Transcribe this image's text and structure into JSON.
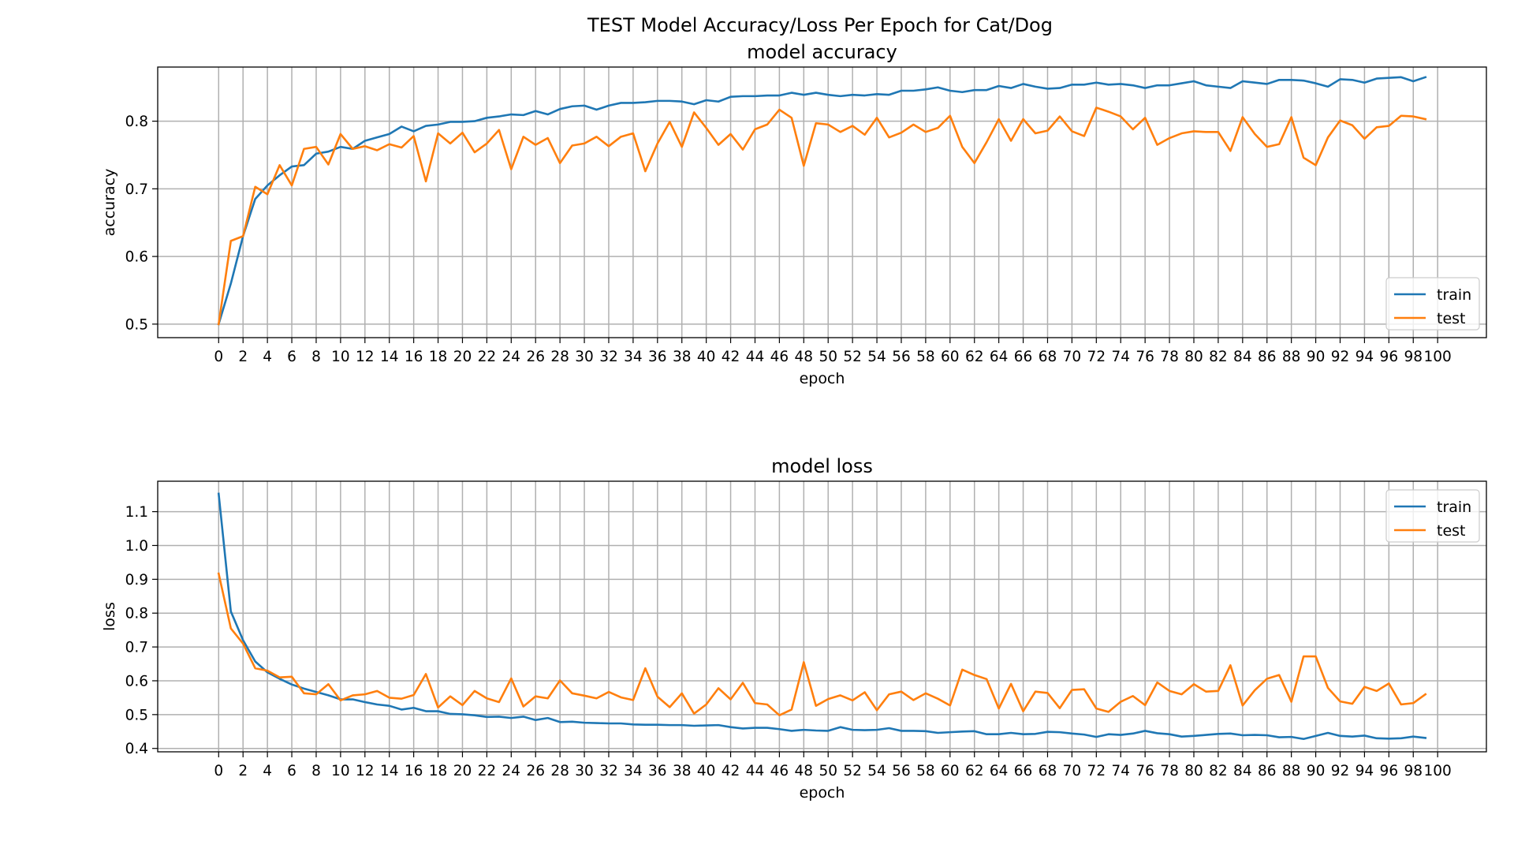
{
  "figure": {
    "suptitle": "TEST Model Accuracy/Loss Per Epoch for Cat/Dog"
  },
  "chart_data": [
    {
      "type": "line",
      "title": "model accuracy",
      "xlabel": "epoch",
      "ylabel": "accuracy",
      "xlim": [
        -5,
        104
      ],
      "ylim": [
        0.48,
        0.88
      ],
      "xticks": [
        0,
        2,
        4,
        6,
        8,
        10,
        12,
        14,
        16,
        18,
        20,
        22,
        24,
        26,
        28,
        30,
        32,
        34,
        36,
        38,
        40,
        42,
        44,
        46,
        48,
        50,
        52,
        54,
        56,
        58,
        60,
        62,
        64,
        66,
        68,
        70,
        72,
        74,
        76,
        78,
        80,
        82,
        84,
        86,
        88,
        90,
        92,
        94,
        96,
        98,
        100
      ],
      "yticks": [
        0.5,
        0.6,
        0.7,
        0.8
      ],
      "ytick_labels": [
        "0.5",
        "0.6",
        "0.7",
        "0.8"
      ],
      "grid": true,
      "legend": "center-right",
      "series": [
        {
          "name": "train",
          "color": "#1f77b4",
          "values": [
            0.5,
            0.56,
            0.63,
            0.685,
            0.705,
            0.72,
            0.733,
            0.735,
            0.752,
            0.755,
            0.762,
            0.759,
            0.771,
            0.776,
            0.781,
            0.792,
            0.785,
            0.793,
            0.795,
            0.799,
            0.799,
            0.8,
            0.805,
            0.807,
            0.81,
            0.809,
            0.815,
            0.81,
            0.818,
            0.822,
            0.823,
            0.817,
            0.823,
            0.827,
            0.827,
            0.828,
            0.83,
            0.83,
            0.829,
            0.825,
            0.831,
            0.829,
            0.836,
            0.837,
            0.837,
            0.838,
            0.838,
            0.842,
            0.839,
            0.842,
            0.839,
            0.837,
            0.839,
            0.838,
            0.84,
            0.839,
            0.845,
            0.845,
            0.847,
            0.85,
            0.845,
            0.843,
            0.846,
            0.846,
            0.852,
            0.849,
            0.855,
            0.851,
            0.848,
            0.849,
            0.854,
            0.854,
            0.857,
            0.854,
            0.855,
            0.853,
            0.849,
            0.853,
            0.853,
            0.856,
            0.859,
            0.853,
            0.851,
            0.849,
            0.859,
            0.857,
            0.855,
            0.861,
            0.861,
            0.86,
            0.856,
            0.851,
            0.862,
            0.861,
            0.857,
            0.863,
            0.864,
            0.865,
            0.859,
            0.865
          ]
        },
        {
          "name": "test",
          "color": "#ff7f0e",
          "values": [
            0.5,
            0.623,
            0.63,
            0.703,
            0.692,
            0.735,
            0.705,
            0.759,
            0.762,
            0.736,
            0.781,
            0.759,
            0.763,
            0.757,
            0.766,
            0.761,
            0.778,
            0.711,
            0.782,
            0.767,
            0.783,
            0.754,
            0.767,
            0.787,
            0.729,
            0.777,
            0.765,
            0.775,
            0.738,
            0.764,
            0.767,
            0.777,
            0.763,
            0.777,
            0.782,
            0.726,
            0.767,
            0.799,
            0.762,
            0.813,
            0.79,
            0.765,
            0.781,
            0.758,
            0.788,
            0.795,
            0.817,
            0.805,
            0.734,
            0.797,
            0.795,
            0.784,
            0.793,
            0.78,
            0.805,
            0.776,
            0.783,
            0.795,
            0.784,
            0.79,
            0.808,
            0.762,
            0.738,
            0.769,
            0.803,
            0.771,
            0.803,
            0.782,
            0.786,
            0.807,
            0.785,
            0.778,
            0.82,
            0.814,
            0.807,
            0.788,
            0.805,
            0.765,
            0.775,
            0.782,
            0.785,
            0.784,
            0.784,
            0.756,
            0.806,
            0.781,
            0.762,
            0.766,
            0.806,
            0.746,
            0.735,
            0.776,
            0.801,
            0.794,
            0.774,
            0.791,
            0.793,
            0.808,
            0.807,
            0.803
          ]
        }
      ]
    },
    {
      "type": "line",
      "title": "model loss",
      "xlabel": "epoch",
      "ylabel": "loss",
      "xlim": [
        -5,
        104
      ],
      "ylim": [
        0.39,
        1.19
      ],
      "xticks": [
        0,
        2,
        4,
        6,
        8,
        10,
        12,
        14,
        16,
        18,
        20,
        22,
        24,
        26,
        28,
        30,
        32,
        34,
        36,
        38,
        40,
        42,
        44,
        46,
        48,
        50,
        52,
        54,
        56,
        58,
        60,
        62,
        64,
        66,
        68,
        70,
        72,
        74,
        76,
        78,
        80,
        82,
        84,
        86,
        88,
        90,
        92,
        94,
        96,
        98,
        100
      ],
      "yticks": [
        0.4,
        0.5,
        0.6,
        0.7,
        0.8,
        0.9,
        1.0,
        1.1
      ],
      "ytick_labels": [
        "0.4",
        "0.5",
        "0.6",
        "0.7",
        "0.8",
        "0.9",
        "1.0",
        "1.1"
      ],
      "grid": true,
      "legend": "top-right",
      "series": [
        {
          "name": "train",
          "color": "#1f77b4",
          "values": [
            1.153,
            0.805,
            0.72,
            0.657,
            0.625,
            0.606,
            0.589,
            0.577,
            0.567,
            0.557,
            0.545,
            0.545,
            0.537,
            0.53,
            0.526,
            0.515,
            0.52,
            0.51,
            0.51,
            0.502,
            0.501,
            0.498,
            0.493,
            0.494,
            0.49,
            0.494,
            0.484,
            0.49,
            0.478,
            0.479,
            0.476,
            0.475,
            0.474,
            0.474,
            0.471,
            0.47,
            0.47,
            0.469,
            0.469,
            0.467,
            0.468,
            0.469,
            0.463,
            0.459,
            0.461,
            0.461,
            0.457,
            0.452,
            0.455,
            0.453,
            0.452,
            0.463,
            0.455,
            0.454,
            0.455,
            0.46,
            0.452,
            0.452,
            0.451,
            0.446,
            0.448,
            0.45,
            0.451,
            0.442,
            0.442,
            0.446,
            0.442,
            0.443,
            0.449,
            0.448,
            0.444,
            0.441,
            0.434,
            0.442,
            0.44,
            0.444,
            0.452,
            0.445,
            0.442,
            0.435,
            0.437,
            0.44,
            0.443,
            0.444,
            0.439,
            0.44,
            0.439,
            0.433,
            0.434,
            0.428,
            0.437,
            0.446,
            0.437,
            0.435,
            0.438,
            0.43,
            0.429,
            0.43,
            0.435,
            0.431
          ]
        },
        {
          "name": "test",
          "color": "#ff7f0e",
          "values": [
            0.917,
            0.755,
            0.71,
            0.637,
            0.63,
            0.61,
            0.612,
            0.563,
            0.56,
            0.59,
            0.542,
            0.557,
            0.56,
            0.57,
            0.55,
            0.547,
            0.558,
            0.62,
            0.521,
            0.554,
            0.528,
            0.57,
            0.548,
            0.537,
            0.607,
            0.524,
            0.554,
            0.548,
            0.601,
            0.563,
            0.556,
            0.548,
            0.567,
            0.551,
            0.543,
            0.637,
            0.553,
            0.522,
            0.563,
            0.503,
            0.53,
            0.578,
            0.545,
            0.594,
            0.534,
            0.53,
            0.498,
            0.515,
            0.655,
            0.526,
            0.546,
            0.557,
            0.542,
            0.566,
            0.513,
            0.56,
            0.568,
            0.543,
            0.563,
            0.547,
            0.527,
            0.633,
            0.617,
            0.605,
            0.518,
            0.591,
            0.51,
            0.568,
            0.564,
            0.519,
            0.573,
            0.575,
            0.518,
            0.508,
            0.538,
            0.555,
            0.528,
            0.595,
            0.57,
            0.56,
            0.59,
            0.568,
            0.57,
            0.646,
            0.527,
            0.572,
            0.606,
            0.617,
            0.538,
            0.672,
            0.672,
            0.579,
            0.539,
            0.532,
            0.582,
            0.57,
            0.592,
            0.53,
            0.534,
            0.56
          ]
        }
      ]
    }
  ]
}
